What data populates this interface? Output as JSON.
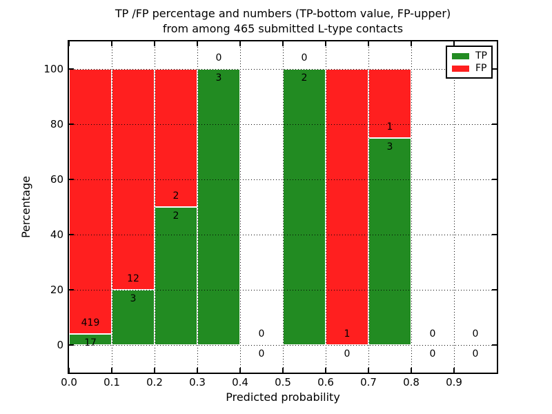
{
  "title": {
    "line1": "TP /FP percentage and numbers (TP-bottom value, FP-upper)",
    "line2": "from among 465 submitted L-type contacts"
  },
  "chart_data": {
    "type": "bar",
    "stacked": true,
    "title": "TP /FP percentage and numbers (TP-bottom value, FP-upper)\nfrom among 465 submitted L-type contacts",
    "xlabel": "Predicted probability",
    "ylabel": "Percentage",
    "xlim": [
      0.0,
      1.0
    ],
    "ylim": [
      -10,
      110
    ],
    "x_tick_labels": [
      "0.0",
      "0.1",
      "0.2",
      "0.3",
      "0.4",
      "0.5",
      "0.6",
      "0.7",
      "0.8",
      "0.9"
    ],
    "y_tick_labels": [
      "0",
      "20",
      "40",
      "60",
      "80",
      "100"
    ],
    "y_ticks": [
      0,
      20,
      40,
      60,
      80,
      100
    ],
    "grid": true,
    "grid_style": "dotted",
    "annotation_note": "TP count printed below TP/FP boundary, FP count printed above it",
    "colors": {
      "tp": "#228b22",
      "fp": "#ff1f1f",
      "axis": "#000000",
      "background": "#ffffff"
    },
    "legend": {
      "position": "upper right",
      "entries": [
        {
          "label": "TP",
          "color": "#228b22"
        },
        {
          "label": "FP",
          "color": "#ff1f1f"
        }
      ]
    },
    "bins": [
      {
        "range": "0.0-0.1",
        "tp": 17,
        "fp": 419,
        "tp_pct": 3.9,
        "fp_pct": 96.1
      },
      {
        "range": "0.1-0.2",
        "tp": 3,
        "fp": 12,
        "tp_pct": 20.0,
        "fp_pct": 80.0
      },
      {
        "range": "0.2-0.3",
        "tp": 2,
        "fp": 2,
        "tp_pct": 50.0,
        "fp_pct": 50.0
      },
      {
        "range": "0.3-0.4",
        "tp": 3,
        "fp": 0,
        "tp_pct": 100.0,
        "fp_pct": 0.0
      },
      {
        "range": "0.4-0.5",
        "tp": 0,
        "fp": 0,
        "tp_pct": 0.0,
        "fp_pct": 0.0
      },
      {
        "range": "0.5-0.6",
        "tp": 2,
        "fp": 0,
        "tp_pct": 100.0,
        "fp_pct": 0.0
      },
      {
        "range": "0.6-0.7",
        "tp": 0,
        "fp": 1,
        "tp_pct": 0.0,
        "fp_pct": 100.0
      },
      {
        "range": "0.7-0.8",
        "tp": 3,
        "fp": 1,
        "tp_pct": 75.0,
        "fp_pct": 25.0
      },
      {
        "range": "0.8-0.9",
        "tp": 0,
        "fp": 0,
        "tp_pct": 0.0,
        "fp_pct": 0.0
      },
      {
        "range": "0.9-1.0",
        "tp": 0,
        "fp": 0,
        "tp_pct": 0.0,
        "fp_pct": 0.0
      }
    ]
  }
}
